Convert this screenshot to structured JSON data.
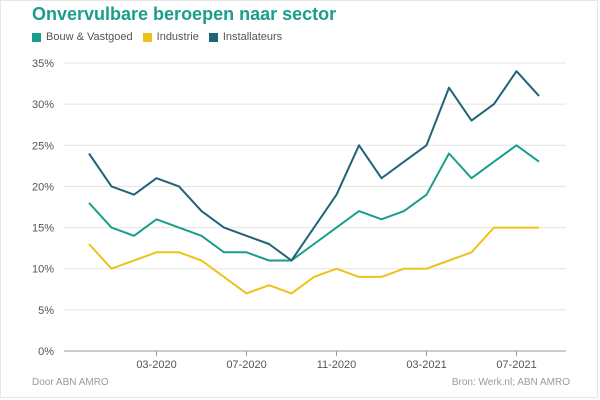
{
  "title": "Onvervulbare beroepen naar sector",
  "footer": {
    "left": "Door ABN AMRO",
    "right": "Bron: Werk.nl; ABN AMRO"
  },
  "chart_data": {
    "type": "line",
    "title": "Onvervulbare beroepen naar sector",
    "xlabel": "",
    "ylabel": "",
    "ylim": [
      0,
      35
    ],
    "y_ticks": [
      "0%",
      "5%",
      "10%",
      "15%",
      "20%",
      "25%",
      "30%",
      "35%"
    ],
    "x": [
      "2019-12",
      "2020-01",
      "2020-02",
      "2020-03",
      "2020-04",
      "2020-05",
      "2020-06",
      "2020-07",
      "2020-08",
      "2020-09",
      "2020-10",
      "2020-11",
      "2020-12",
      "2021-01",
      "2021-02",
      "2021-03",
      "2021-04",
      "2021-05",
      "2021-06",
      "2021-07",
      "2021-08"
    ],
    "x_tick_labels": [
      {
        "at": "2020-03",
        "label": "03-2020"
      },
      {
        "at": "2020-07",
        "label": "07-2020"
      },
      {
        "at": "2020-11",
        "label": "11-2020"
      },
      {
        "at": "2021-03",
        "label": "03-2021"
      },
      {
        "at": "2021-07",
        "label": "07-2021"
      }
    ],
    "legend_position": "top-left",
    "grid": true,
    "series": [
      {
        "name": "Bouw & Vastgoed",
        "color": "#1a9e8c",
        "values": [
          18,
          15,
          14,
          16,
          15,
          14,
          12,
          12,
          11,
          11,
          13,
          15,
          17,
          16,
          17,
          19,
          24,
          21,
          23,
          25,
          23
        ]
      },
      {
        "name": "Industrie",
        "color": "#eec21b",
        "values": [
          13,
          10,
          11,
          12,
          12,
          11,
          9,
          7,
          8,
          7,
          9,
          10,
          9,
          9,
          10,
          10,
          11,
          12,
          15,
          15,
          15
        ]
      },
      {
        "name": "Installateurs",
        "color": "#1f6478",
        "values": [
          24,
          20,
          19,
          21,
          20,
          17,
          15,
          14,
          13,
          11,
          15,
          19,
          25,
          21,
          23,
          25,
          32,
          28,
          30,
          34,
          31
        ]
      }
    ]
  }
}
